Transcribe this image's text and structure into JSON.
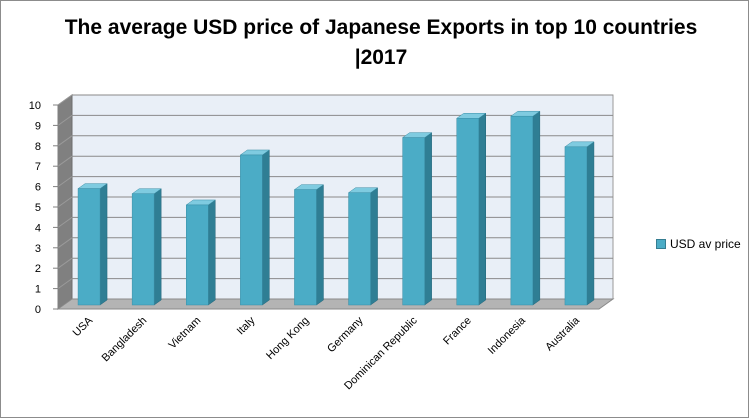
{
  "chart_data": {
    "type": "bar",
    "title": "The average USD price of Japanese Exports in top 10 countries |2017",
    "categories": [
      "USA",
      "Bangladesh",
      "Vietnam",
      "Italy",
      "Hong Kong",
      "Germany",
      "Dominican Republic",
      "France",
      "Indonesia",
      "Australia"
    ],
    "series": [
      {
        "name": "USD av price",
        "values": [
          5.9,
          5.65,
          5.1,
          7.55,
          5.85,
          5.7,
          8.4,
          9.35,
          9.45,
          7.95
        ]
      }
    ],
    "ylim": [
      0,
      10
    ],
    "yticks": [
      0,
      1,
      2,
      3,
      4,
      5,
      6,
      7,
      8,
      9,
      10
    ],
    "grid": true,
    "legend_position": "right",
    "colors": {
      "bar_front": "#4bacc6",
      "bar_side": "#2f7e94",
      "bar_top": "#7fcbe0",
      "wall": "#e9eff7",
      "floor": "#b4b4b4"
    }
  }
}
